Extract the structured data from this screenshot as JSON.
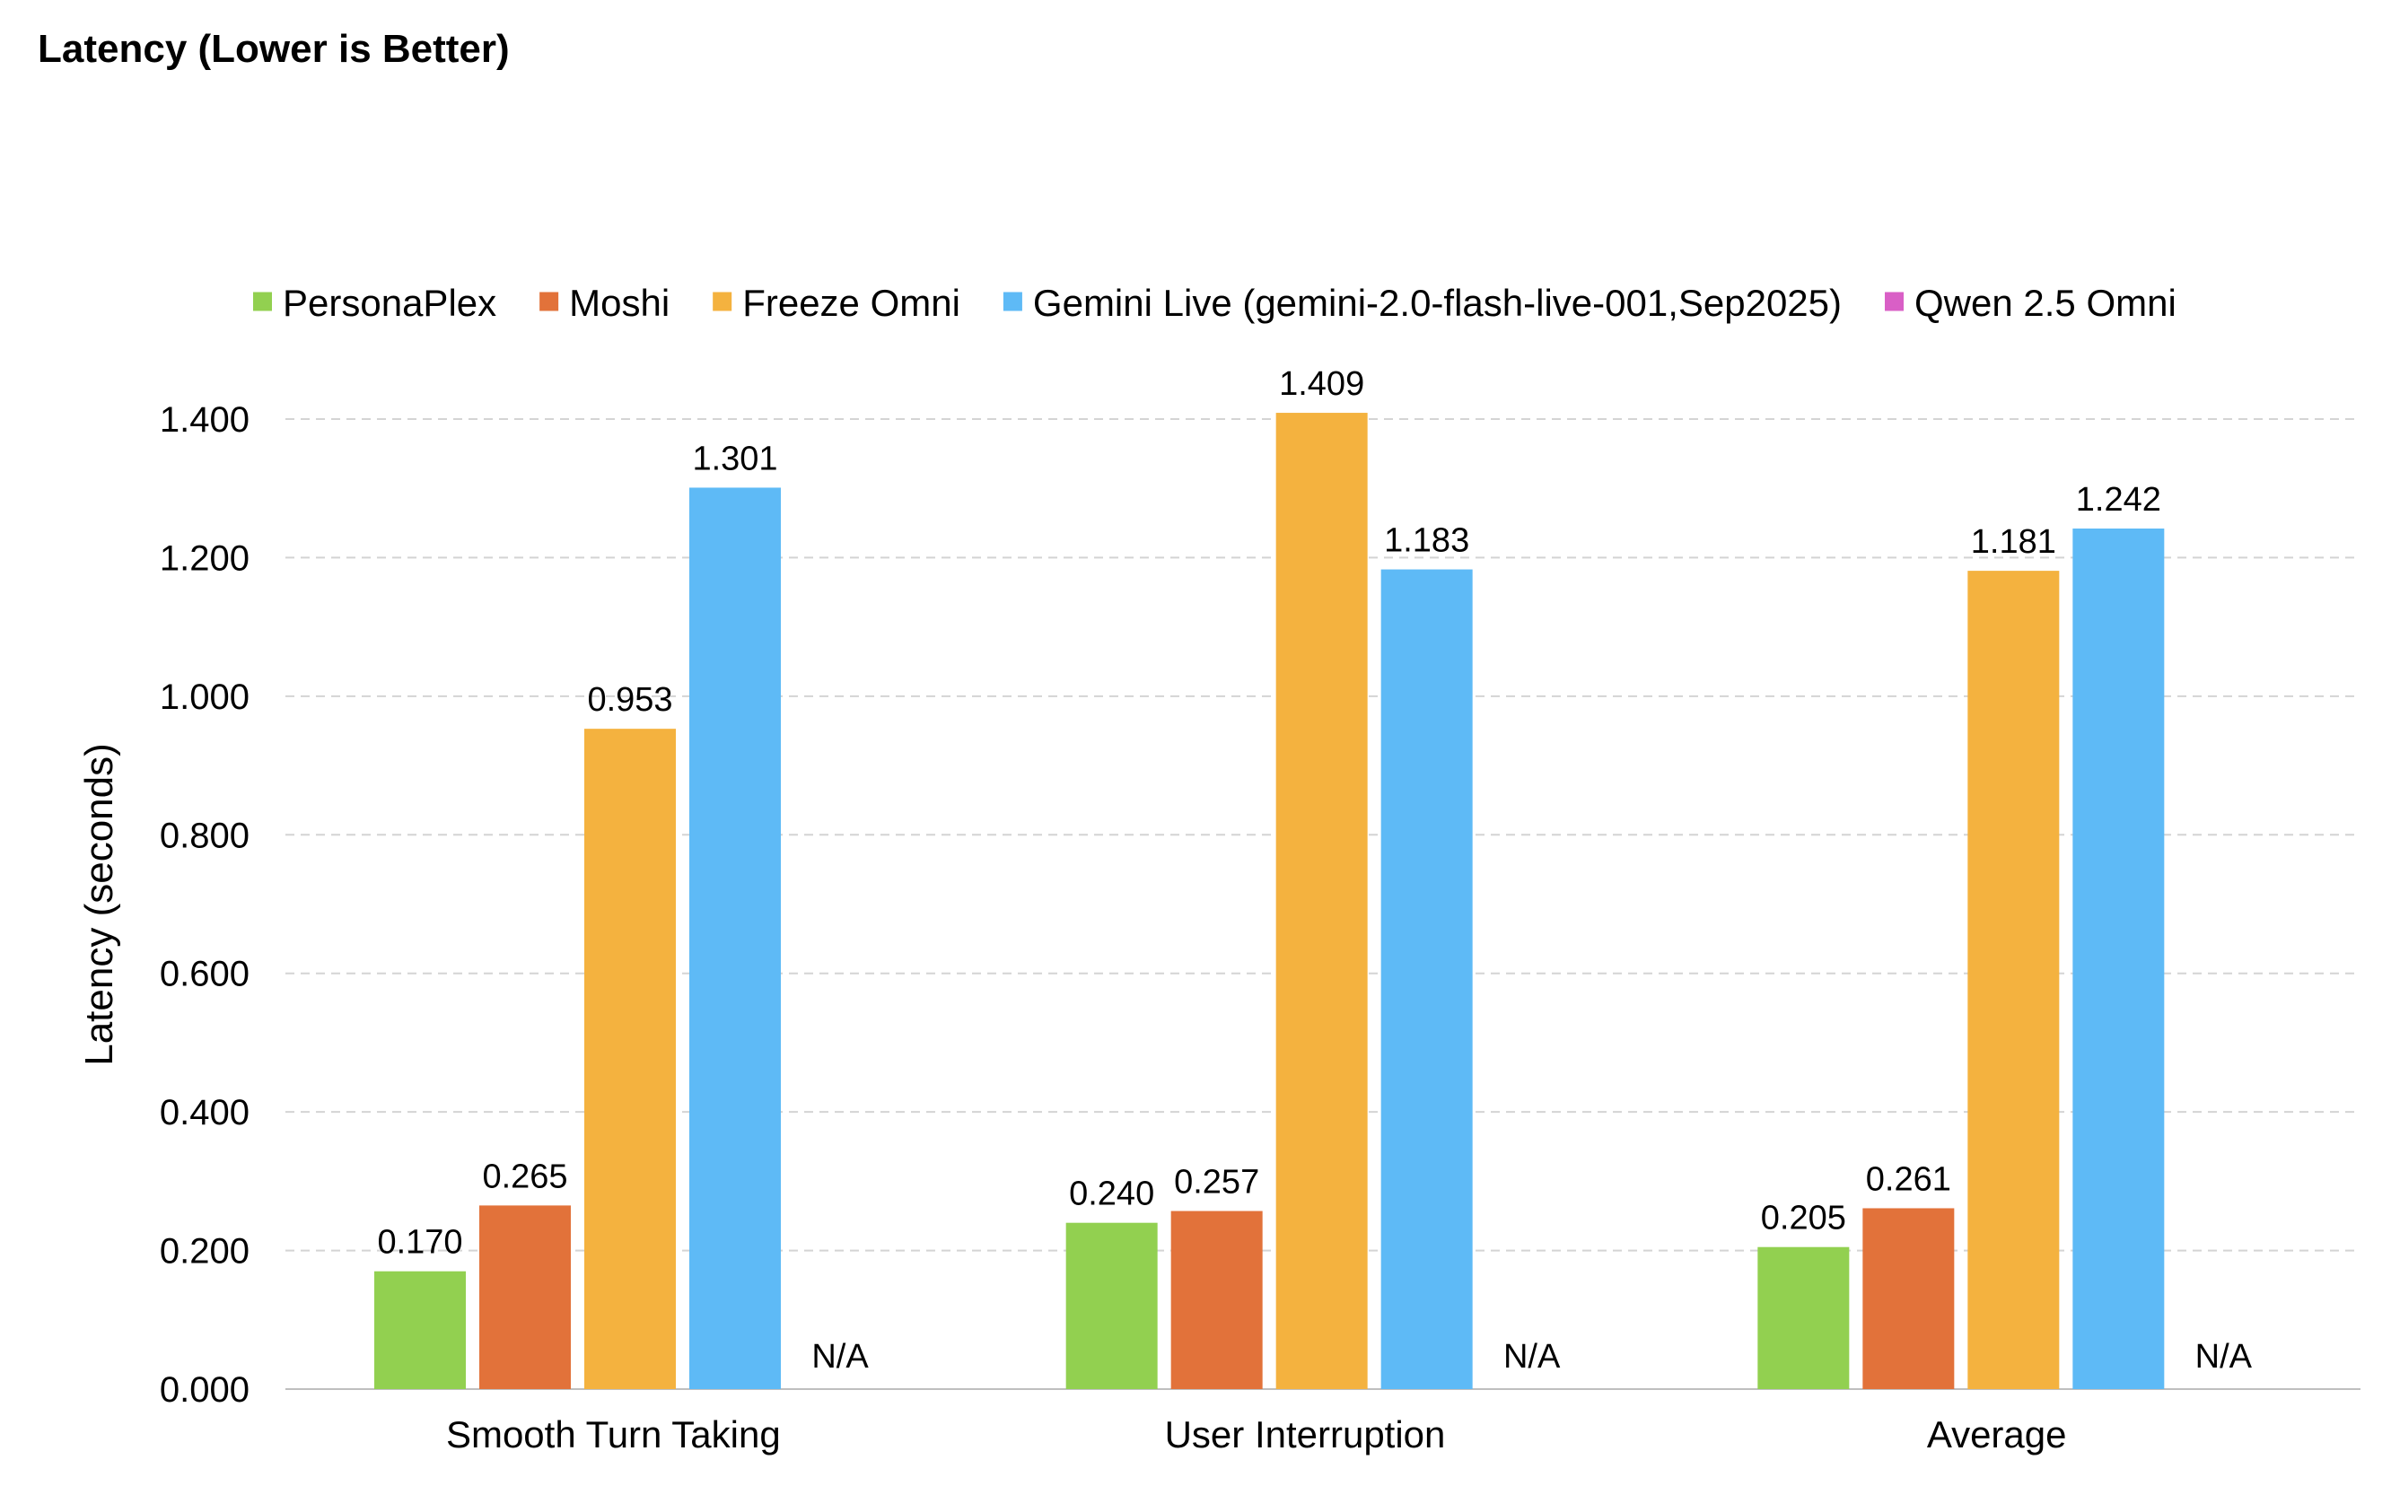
{
  "chart_data": {
    "type": "bar",
    "title": "Latency (Lower is Better)",
    "xlabel": "",
    "ylabel": "Latency (seconds)",
    "ylim": [
      0,
      1.4
    ],
    "yticks": [
      "0.000",
      "0.200",
      "0.400",
      "0.600",
      "0.800",
      "1.000",
      "1.200",
      "1.400"
    ],
    "grid": true,
    "legend_position": "top",
    "categories": [
      "Smooth Turn Taking",
      "User Interruption",
      "Average"
    ],
    "series": [
      {
        "name": "PersonaPlex",
        "color": "#92d050",
        "values": [
          0.17,
          0.24,
          0.205
        ],
        "labels": [
          "0.170",
          "0.240",
          "0.205"
        ]
      },
      {
        "name": "Moshi",
        "color": "#e2723a",
        "values": [
          0.265,
          0.257,
          0.261
        ],
        "labels": [
          "0.265",
          "0.257",
          "0.261"
        ]
      },
      {
        "name": "Freeze Omni",
        "color": "#f4b23f",
        "values": [
          0.953,
          1.409,
          1.181
        ],
        "labels": [
          "0.953",
          "1.409",
          "1.181"
        ]
      },
      {
        "name": "Gemini Live (gemini-2.0-flash-live-001,Sep2025)",
        "color": "#5ebaf6",
        "values": [
          1.301,
          1.183,
          1.242
        ],
        "labels": [
          "1.301",
          "1.183",
          "1.242"
        ]
      },
      {
        "name": "Qwen 2.5 Omni",
        "color": "#d95fc6",
        "values": [
          null,
          null,
          null
        ],
        "labels": [
          "N/A",
          "N/A",
          "N/A"
        ]
      }
    ]
  }
}
